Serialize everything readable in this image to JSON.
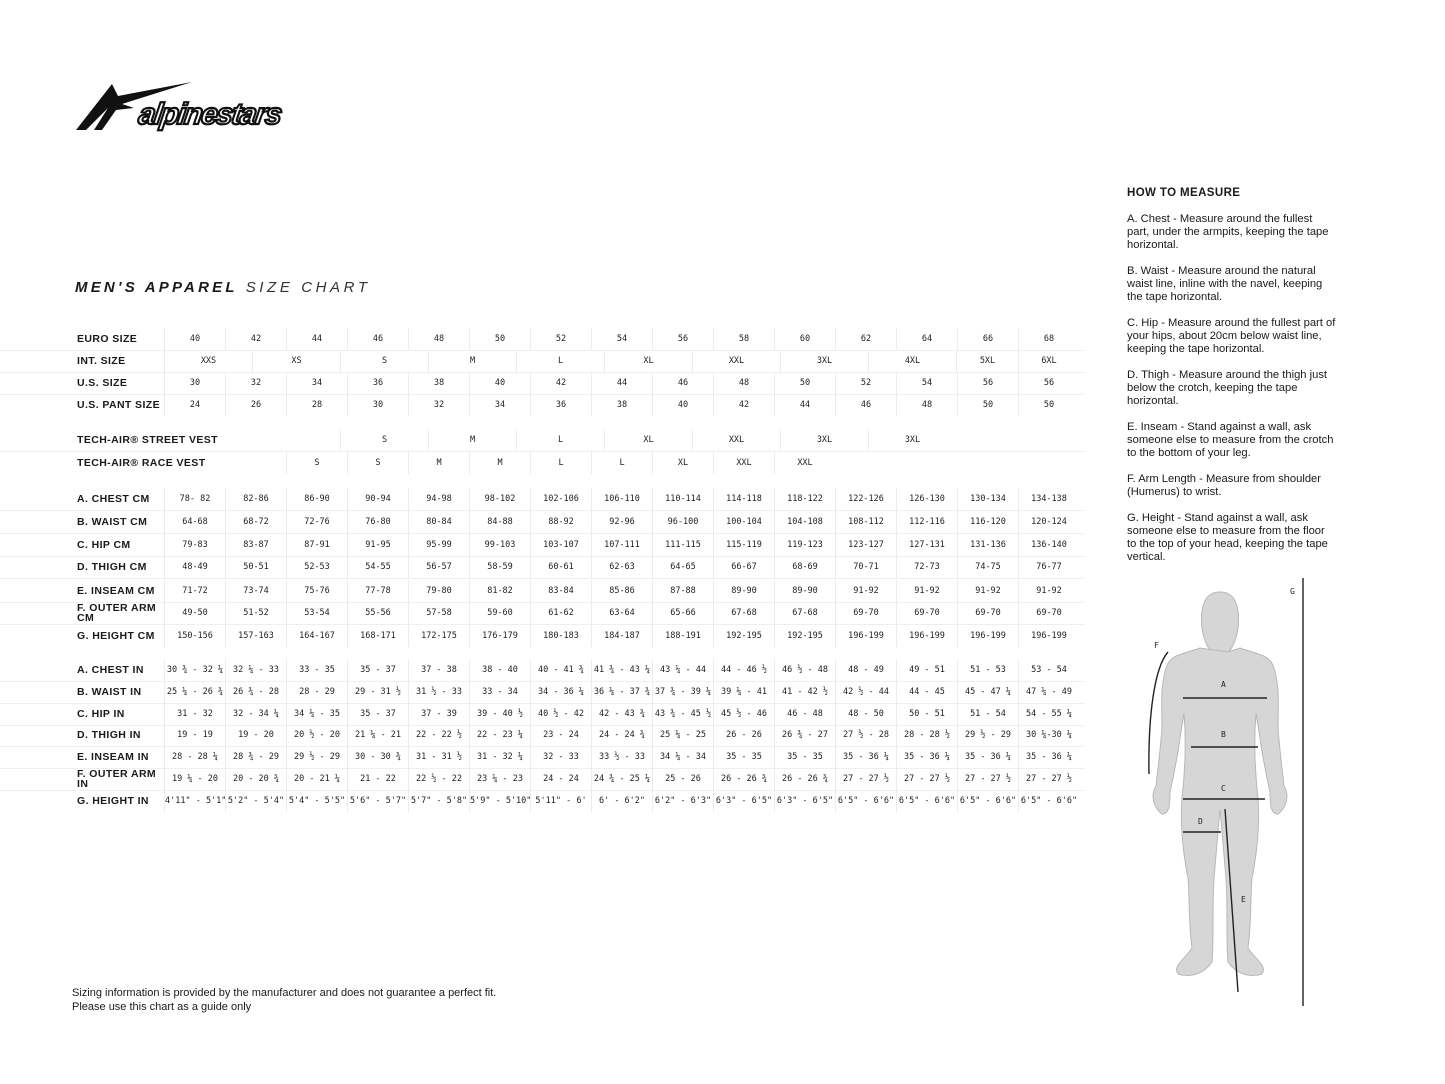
{
  "brand": {
    "logo_text": "alpinestars"
  },
  "title": {
    "bold": "MEN'S APPAREL",
    "light": "SIZE CHART"
  },
  "table": {
    "rows": [
      {
        "label": "EURO SIZE",
        "grid": "euro",
        "values": [
          "40",
          "42",
          "44",
          "46",
          "48",
          "50",
          "52",
          "54",
          "56",
          "58",
          "60",
          "62",
          "64",
          "66",
          "68"
        ]
      },
      {
        "label": "INT. SIZE",
        "grid": "int",
        "values": [
          "XXS",
          "XS",
          "S",
          "M",
          "L",
          "XL",
          "XXL",
          "3XL",
          "4XL",
          "5XL",
          "6XL"
        ]
      },
      {
        "label": "U.S. SIZE",
        "grid": "euro",
        "values": [
          "30",
          "32",
          "34",
          "36",
          "38",
          "40",
          "42",
          "44",
          "46",
          "48",
          "50",
          "52",
          "54",
          "56",
          "56"
        ]
      },
      {
        "label": "U.S. PANT SIZE",
        "grid": "euro",
        "values": [
          "24",
          "26",
          "28",
          "30",
          "32",
          "34",
          "36",
          "38",
          "40",
          "42",
          "44",
          "46",
          "48",
          "50",
          "50"
        ]
      },
      {
        "label": "TECH-AIR® STREET VEST",
        "grid": "int",
        "values": [
          "",
          "",
          "S",
          "M",
          "L",
          "XL",
          "XXL",
          "3XL",
          "3XL",
          "",
          ""
        ]
      },
      {
        "label": "TECH-AIR® RACE VEST",
        "grid": "euro",
        "values": [
          "",
          "",
          "S",
          "S",
          "M",
          "M",
          "L",
          "L",
          "XL",
          "XXL",
          "XXL",
          "",
          "",
          "",
          ""
        ]
      },
      {
        "label": "A. CHEST CM",
        "grid": "euro",
        "values": [
          "78- 82",
          "82-86",
          "86-90",
          "90-94",
          "94-98",
          "98-102",
          "102-106",
          "106-110",
          "110-114",
          "114-118",
          "118-122",
          "122-126",
          "126-130",
          "130-134",
          "134-138"
        ]
      },
      {
        "label": "B. WAIST CM",
        "grid": "euro",
        "values": [
          "64-68",
          "68-72",
          "72-76",
          "76-80",
          "80-84",
          "84-88",
          "88-92",
          "92-96",
          "96-100",
          "100-104",
          "104-108",
          "108-112",
          "112-116",
          "116-120",
          "120-124"
        ]
      },
      {
        "label": "C. HIP CM",
        "grid": "euro",
        "values": [
          "79-83",
          "83-87",
          "87-91",
          "91-95",
          "95-99",
          "99-103",
          "103-107",
          "107-111",
          "111-115",
          "115-119",
          "119-123",
          "123-127",
          "127-131",
          "131-136",
          "136-140"
        ]
      },
      {
        "label": "D. THIGH CM",
        "grid": "euro",
        "values": [
          "48-49",
          "50-51",
          "52-53",
          "54-55",
          "56-57",
          "58-59",
          "60-61",
          "62-63",
          "64-65",
          "66-67",
          "68-69",
          "70-71",
          "72-73",
          "74-75",
          "76-77"
        ]
      },
      {
        "label": "E. INSEAM CM",
        "grid": "euro",
        "values": [
          "71-72",
          "73-74",
          "75-76",
          "77-78",
          "79-80",
          "81-82",
          "83-84",
          "85-86",
          "87-88",
          "89-90",
          "89-90",
          "91-92",
          "91-92",
          "91-92",
          "91-92"
        ]
      },
      {
        "label": "F. OUTER ARM CM",
        "grid": "euro",
        "values": [
          "49-50",
          "51-52",
          "53-54",
          "55-56",
          "57-58",
          "59-60",
          "61-62",
          "63-64",
          "65-66",
          "67-68",
          "67-68",
          "69-70",
          "69-70",
          "69-70",
          "69-70"
        ]
      },
      {
        "label": "G. HEIGHT CM",
        "grid": "euro",
        "values": [
          "150-156",
          "157-163",
          "164-167",
          "168-171",
          "172-175",
          "176-179",
          "180-183",
          "184-187",
          "188-191",
          "192-195",
          "192-195",
          "196-199",
          "196-199",
          "196-199",
          "196-199"
        ]
      },
      {
        "label": "A. CHEST IN",
        "grid": "euro",
        "values": [
          "30 ¾ - 32 ¼",
          "32 ¼ - 33",
          "33 - 35",
          "35 - 37",
          "37 - 38",
          "38 - 40",
          "40 - 41 ¾",
          "41 ¾ - 43 ¼",
          "43 ¼ - 44",
          "44 - 46 ½",
          "46 ½ - 48",
          "48 - 49",
          "49 - 51",
          "51 - 53",
          "53 - 54"
        ]
      },
      {
        "label": "B. WAIST IN",
        "grid": "euro",
        "values": [
          "25 ¼ - 26 ¾",
          "26 ¾ - 28",
          "28 - 29",
          "29 - 31 ½",
          "31 ½ - 33",
          "33 - 34",
          "34 - 36 ¼",
          "36 ¼ - 37 ¾",
          "37 ¾ - 39 ¼",
          "39 ¼ - 41",
          "41 - 42 ½",
          "42 ½ - 44",
          "44 - 45",
          "45 - 47 ¼",
          "47 ¼ - 49"
        ]
      },
      {
        "label": "C. HIP IN",
        "grid": "euro",
        "values": [
          "31 - 32",
          "32 - 34 ¼",
          "34 ¼ - 35",
          "35 - 37",
          "37 - 39",
          "39 - 40 ½",
          "40 ½ - 42",
          "42 - 43 ¾",
          "43 ¾ - 45 ½",
          "45 ½ - 46",
          "46 - 48",
          "48 - 50",
          "50 - 51",
          "51 - 54",
          "54 - 55 ¼"
        ]
      },
      {
        "label": "D. THIGH IN",
        "grid": "euro",
        "values": [
          "19 - 19",
          "19 - 20",
          "20 ½ - 20",
          "21 ¼ - 21",
          "22 - 22 ½",
          "22 - 23 ¼",
          "23 - 24",
          "24 - 24 ¾",
          "25 ¼ - 25",
          "26 - 26",
          "26 ¾ - 27",
          "27 ½ - 28",
          "28 - 28 ½",
          "29 ½ - 29",
          "30 ¼-30 ¼"
        ]
      },
      {
        "label": "E. INSEAM IN",
        "grid": "euro",
        "values": [
          "28 - 28 ¼",
          "28 ¾ - 29",
          "29 ½ - 29",
          "30 - 30 ¾",
          "31 - 31 ½",
          "31 - 32 ¼",
          "32 - 33",
          "33 ½ - 33",
          "34 ¼ - 34",
          "35 - 35",
          "35 - 35",
          "35 - 36 ¼",
          "35 - 36 ¼",
          "35 - 36 ¼",
          "35 - 36 ¼"
        ]
      },
      {
        "label": "F. OUTER ARM IN",
        "grid": "euro",
        "values": [
          "19 ¼ - 20",
          "20 - 20 ¾",
          "20 - 21 ¼",
          "21 - 22",
          "22 ½ - 22",
          "23 ¼ - 23",
          "24 - 24",
          "24 ¾ - 25 ¼",
          "25 - 26",
          "26 - 26 ¾",
          "26 - 26 ¾",
          "27 - 27 ½",
          "27 - 27 ½",
          "27 - 27 ½",
          "27 - 27 ½"
        ]
      },
      {
        "label": "G. HEIGHT IN",
        "grid": "euro",
        "values": [
          "4'11\" - 5'1\"",
          "5'2\" - 5'4\"",
          "5'4\" - 5'5\"",
          "5'6\" - 5'7\"",
          "5'7\" - 5'8\"",
          "5'9\" - 5'10\"",
          "5'11\" - 6'",
          "6' - 6'2\"",
          "6'2\" - 6'3\"",
          "6'3\" - 6'5\"",
          "6'3\" - 6'5\"",
          "6'5\" - 6'6\"",
          "6'5\" - 6'6\"",
          "6'5\" - 6'6\"",
          "6'5\" - 6'6\""
        ]
      }
    ]
  },
  "how_to_measure": {
    "heading": "HOW TO MEASURE",
    "items": [
      "A. Chest - Measure around the fullest part, under the armpits, keeping the tape horizontal.",
      "B. Waist - Measure around the natural waist line, inline with the navel, keeping the tape horizontal.",
      "C. Hip - Measure around the fullest part of your hips, about 20cm below waist line, keeping the tape horizontal.",
      "D. Thigh - Measure around the thigh just below the crotch, keeping the tape horizontal.",
      "E. Inseam - Stand against a wall, ask someone else to measure from the crotch to the bottom of your leg.",
      "F. Arm Length - Measure from shoulder (Humerus) to wrist.",
      "G. Height - Stand against a wall, ask someone else to measure from the floor to the top of your head, keeping the tape vertical."
    ]
  },
  "figure": {
    "labels": {
      "a": "A",
      "b": "B",
      "c": "C",
      "d": "D",
      "e": "E",
      "f": "F",
      "g": "G"
    },
    "body_color": "#d6d6d6"
  },
  "footer": {
    "line1": "Sizing information is provided by the manufacturer and does not guarantee a perfect fit.",
    "line2": "Please use this chart as a guide only"
  }
}
